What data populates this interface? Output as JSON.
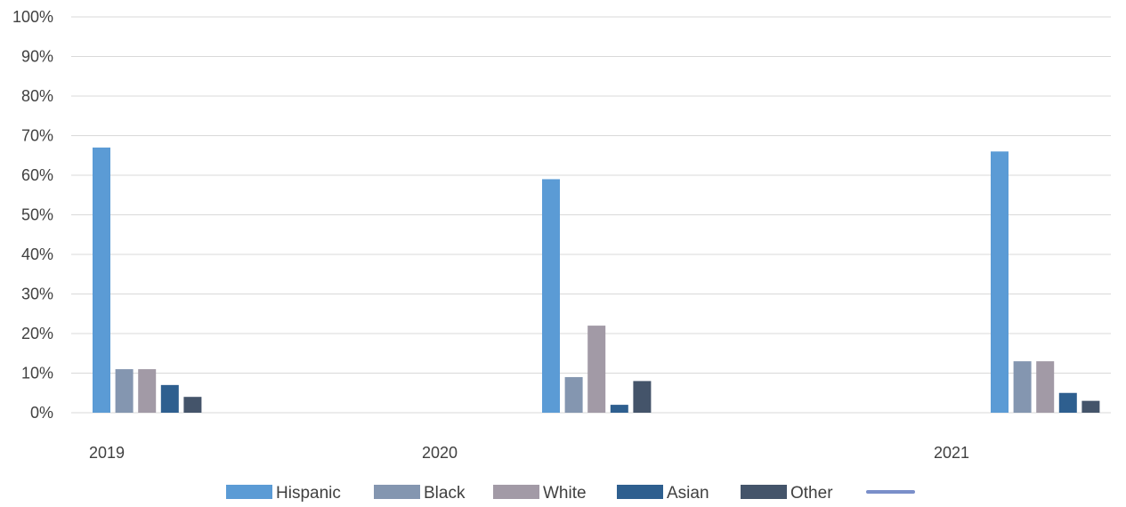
{
  "chart_data": {
    "type": "bar",
    "categories": [
      "2019",
      "2020",
      "2021"
    ],
    "series": [
      {
        "name": "Hispanic",
        "values": [
          67,
          59,
          66
        ],
        "color": "#5b9bd5"
      },
      {
        "name": "Black",
        "values": [
          11,
          9,
          13
        ],
        "color": "#8496b0"
      },
      {
        "name": "White",
        "values": [
          11,
          22,
          13
        ],
        "color": "#a29aa6"
      },
      {
        "name": "Asian",
        "values": [
          7,
          2,
          5
        ],
        "color": "#2e5f8f"
      },
      {
        "name": "Other",
        "values": [
          4,
          8,
          3
        ],
        "color": "#44546a"
      }
    ],
    "extra_legend_entry": {
      "name": "",
      "color": "#7a8fc9",
      "marker": "line"
    },
    "title": "",
    "xlabel": "",
    "ylabel": "",
    "ylim": [
      0,
      100
    ],
    "yticks": [
      "0%",
      "10%",
      "20%",
      "30%",
      "40%",
      "50%",
      "60%",
      "70%",
      "80%",
      "90%",
      "100%"
    ],
    "grid": true,
    "legend_position": "bottom"
  }
}
